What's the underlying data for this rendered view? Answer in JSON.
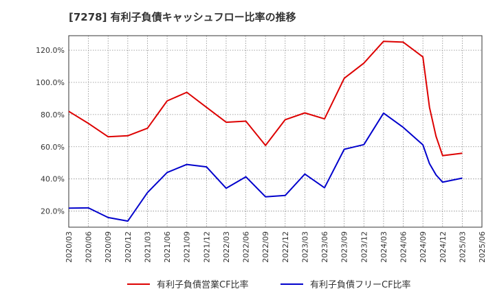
{
  "chart_data": {
    "type": "line",
    "title": "[7278]  有利子負債キャッシュフロー比率の推移",
    "xlabel": "",
    "ylabel": "",
    "ylim": [
      10,
      129
    ],
    "y_ticks": [
      20,
      40,
      60,
      80,
      100,
      120
    ],
    "y_tick_format": "{v}.0%",
    "grid": true,
    "legend_position": "bottom",
    "x_tick_labels": [
      "2020/03",
      "2020/06",
      "2020/09",
      "2020/12",
      "2021/03",
      "2021/06",
      "2021/09",
      "2021/12",
      "2022/03",
      "2022/06",
      "2022/09",
      "2022/12",
      "2023/03",
      "2023/06",
      "2023/09",
      "2023/12",
      "2024/03",
      "2024/06",
      "2024/09",
      "2024/12",
      "2025/03",
      "2025/06"
    ],
    "series": [
      {
        "name": "有利子負債営業CF比率",
        "color": "#dd0000",
        "points": [
          [
            "2020/03",
            82.0
          ],
          [
            "2020/06",
            74.5
          ],
          [
            "2020/09",
            66.2
          ],
          [
            "2020/12",
            66.8
          ],
          [
            "2021/03",
            71.5
          ],
          [
            "2021/06",
            88.5
          ],
          [
            "2021/09",
            93.8
          ],
          [
            "2021/12",
            84.5
          ],
          [
            "2022/03",
            75.2
          ],
          [
            "2022/06",
            75.9
          ],
          [
            "2022/09",
            60.8
          ],
          [
            "2022/12",
            76.8
          ],
          [
            "2023/03",
            81.0
          ],
          [
            "2023/06",
            77.3
          ],
          [
            "2023/09",
            102.5
          ],
          [
            "2023/12",
            112.0
          ],
          [
            "2024/03",
            125.5
          ],
          [
            "2024/06",
            125.0
          ],
          [
            "2024/09",
            115.8
          ],
          [
            "2024/10",
            84.5
          ],
          [
            "2024/11",
            66.5
          ],
          [
            "2024/12",
            54.5
          ],
          [
            "2025/03",
            56.0
          ]
        ]
      },
      {
        "name": "有利子負債フリーCF比率",
        "color": "#0000cc",
        "points": [
          [
            "2020/03",
            21.8
          ],
          [
            "2020/06",
            22.0
          ],
          [
            "2020/09",
            16.0
          ],
          [
            "2020/12",
            13.8
          ],
          [
            "2021/03",
            31.5
          ],
          [
            "2021/06",
            44.0
          ],
          [
            "2021/09",
            49.0
          ],
          [
            "2021/12",
            47.5
          ],
          [
            "2022/03",
            34.2
          ],
          [
            "2022/06",
            41.3
          ],
          [
            "2022/09",
            28.9
          ],
          [
            "2022/12",
            29.7
          ],
          [
            "2023/03",
            43.0
          ],
          [
            "2023/06",
            34.5
          ],
          [
            "2023/09",
            58.4
          ],
          [
            "2023/12",
            61.3
          ],
          [
            "2024/03",
            80.9
          ],
          [
            "2024/06",
            72.0
          ],
          [
            "2024/09",
            61.2
          ],
          [
            "2024/10",
            49.5
          ],
          [
            "2024/11",
            42.5
          ],
          [
            "2024/12",
            38.0
          ],
          [
            "2025/03",
            40.5
          ]
        ]
      }
    ]
  }
}
